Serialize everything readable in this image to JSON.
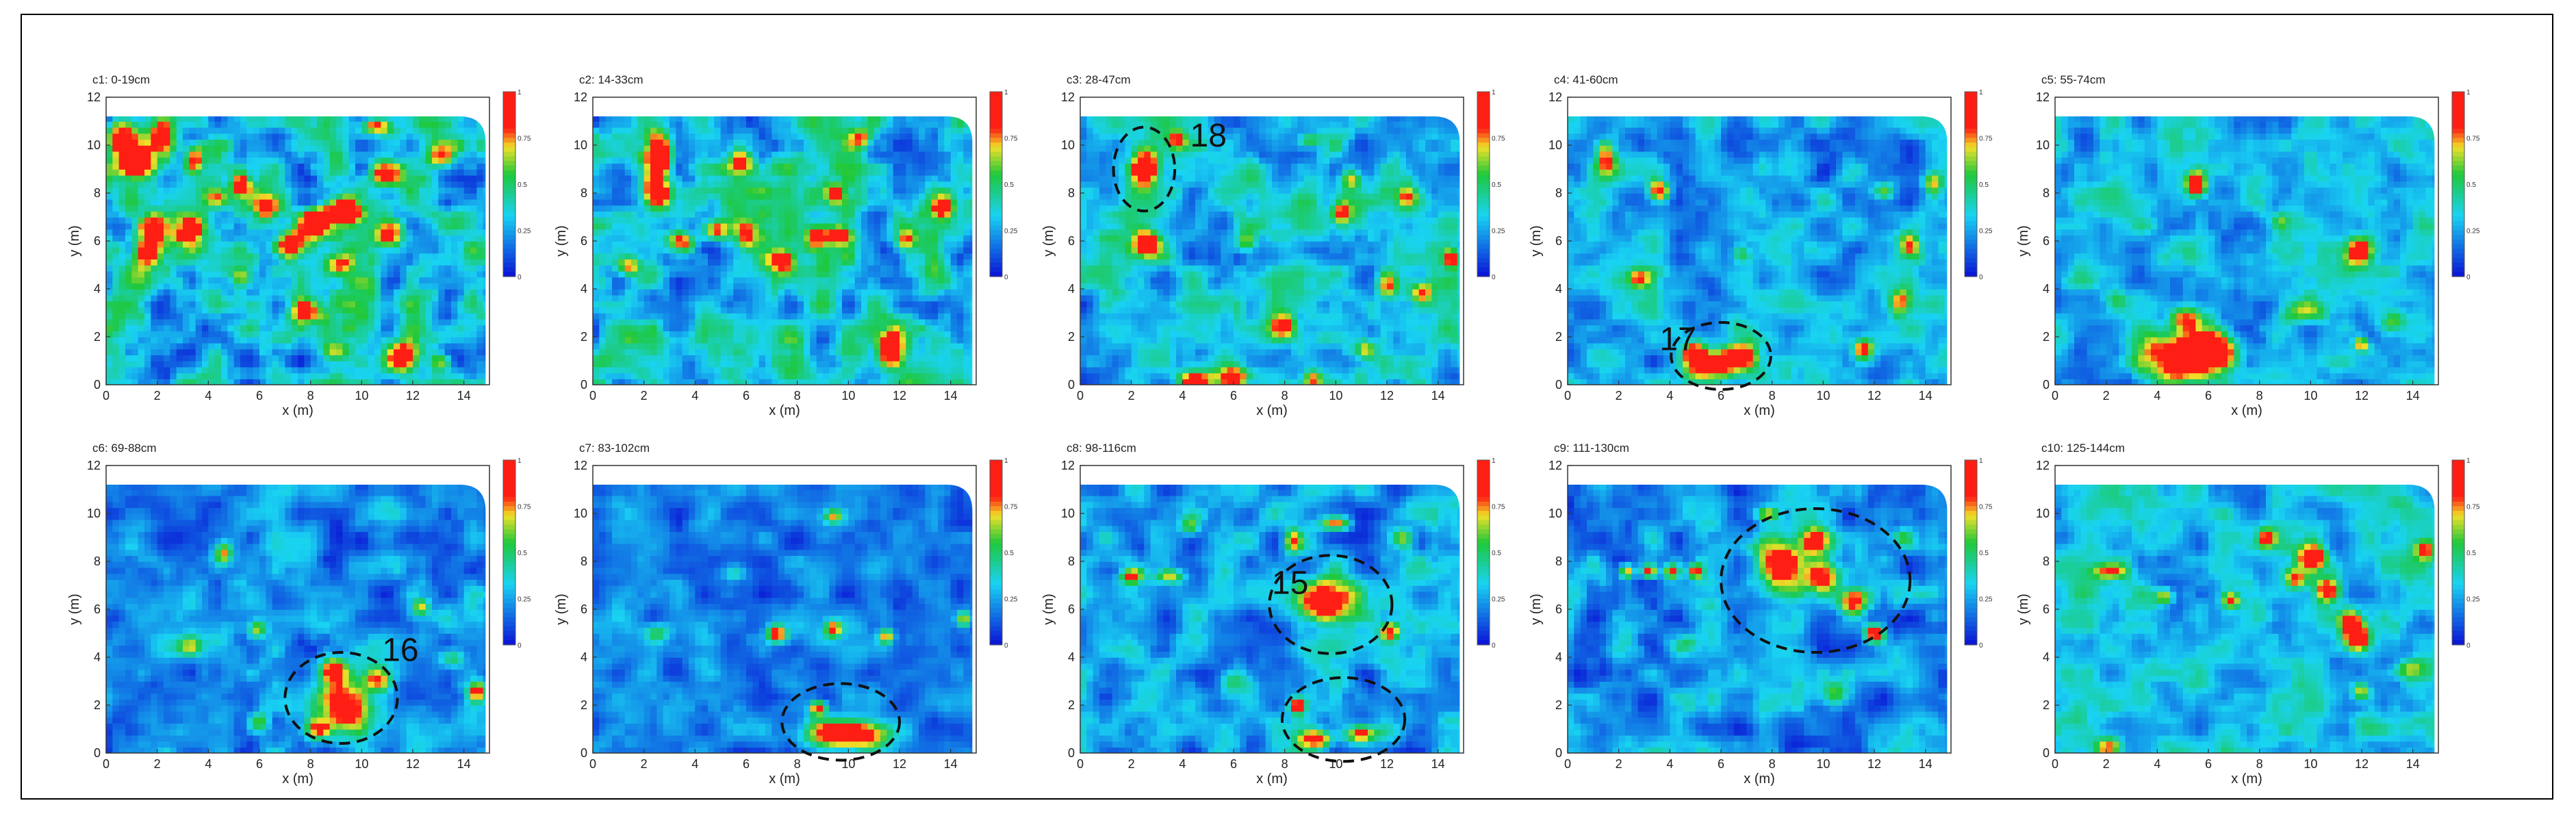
{
  "colors": {
    "low": "#0a12d6",
    "cyan": "#19d3f2",
    "green": "#1ec83c",
    "yellow": "#f0e028",
    "high": "#ff1e14"
  },
  "chart_data": {
    "type": "heatmap",
    "layout": {
      "rows": 2,
      "cols": 5
    },
    "xlabel": "x (m)",
    "ylabel": "y (m)",
    "xlim": [
      0,
      15
    ],
    "ylim": [
      0,
      12
    ],
    "xticks": [
      0,
      2,
      4,
      6,
      8,
      10,
      12,
      14
    ],
    "yticks": [
      0,
      2,
      4,
      6,
      8,
      10,
      12
    ],
    "colorbar": {
      "min": 0,
      "max": 1,
      "ticks": [
        "1",
        "0.75",
        "0.5",
        "0.25",
        "0"
      ]
    },
    "panels": [
      {
        "title": "c1: 0-19cm",
        "base": 0.33,
        "noise": 0.34,
        "blobs": [
          [
            0.5,
            10.3,
            0.6,
            0.7,
            0.8
          ],
          [
            1.3,
            9.3,
            0.7,
            0.6,
            0.8
          ],
          [
            2.2,
            10.5,
            0.4,
            0.5,
            0.6
          ],
          [
            1.8,
            6.5,
            0.6,
            0.6,
            0.7
          ],
          [
            1.5,
            5.5,
            0.5,
            0.6,
            0.6
          ],
          [
            3.3,
            6.5,
            0.6,
            0.6,
            0.8
          ],
          [
            3.5,
            9.5,
            0.4,
            0.5,
            0.6
          ],
          [
            5.3,
            8.4,
            0.4,
            0.4,
            0.6
          ],
          [
            6.3,
            7.4,
            0.5,
            0.5,
            0.7
          ],
          [
            7.2,
            5.9,
            0.6,
            0.6,
            0.8
          ],
          [
            8.2,
            6.8,
            0.6,
            0.6,
            0.8
          ],
          [
            9.3,
            7.3,
            0.6,
            0.5,
            0.9
          ],
          [
            9.1,
            5.0,
            0.5,
            0.5,
            0.6
          ],
          [
            7.8,
            3.1,
            0.5,
            0.4,
            0.5
          ],
          [
            11.0,
            6.2,
            0.5,
            0.5,
            0.6
          ],
          [
            10.8,
            8.8,
            0.5,
            0.5,
            0.5
          ],
          [
            11.7,
            1.2,
            0.6,
            0.7,
            0.8
          ],
          [
            13.0,
            1.0,
            0.4,
            0.4,
            0.5
          ],
          [
            9.0,
            1.4,
            0.5,
            0.4,
            0.5
          ],
          [
            10.6,
            10.8,
            0.6,
            0.3,
            0.6
          ],
          [
            4.3,
            7.8,
            0.4,
            0.4,
            0.5
          ],
          [
            13.0,
            9.5,
            0.5,
            0.4,
            0.4
          ],
          [
            5.3,
            4.5,
            0.4,
            0.4,
            0.45
          ]
        ],
        "annotations": []
      },
      {
        "title": "c2: 14-33cm",
        "base": 0.33,
        "noise": 0.3,
        "blobs": [
          [
            2.6,
            9.6,
            0.5,
            0.8,
            0.9
          ],
          [
            2.5,
            8.1,
            0.45,
            0.6,
            0.8
          ],
          [
            3.5,
            6.0,
            0.5,
            0.4,
            0.6
          ],
          [
            4.8,
            6.5,
            0.4,
            0.4,
            0.6
          ],
          [
            6.0,
            6.2,
            0.4,
            0.5,
            0.55
          ],
          [
            7.4,
            5.2,
            0.5,
            0.5,
            0.6
          ],
          [
            8.8,
            6.2,
            0.4,
            0.4,
            0.6
          ],
          [
            9.6,
            6.3,
            0.4,
            0.4,
            0.6
          ],
          [
            9.5,
            8.0,
            0.4,
            0.4,
            0.45
          ],
          [
            11.7,
            1.5,
            0.5,
            0.7,
            0.85
          ],
          [
            13.7,
            7.4,
            0.4,
            0.4,
            0.7
          ],
          [
            1.4,
            5.0,
            0.5,
            0.4,
            0.5
          ],
          [
            10.5,
            10.3,
            0.4,
            0.4,
            0.5
          ],
          [
            5.8,
            9.4,
            0.4,
            0.4,
            0.45
          ],
          [
            12.2,
            6.0,
            0.4,
            0.4,
            0.45
          ]
        ],
        "annotations": []
      },
      {
        "title": "c3: 28-47cm",
        "base": 0.3,
        "noise": 0.26,
        "blobs": [
          [
            2.5,
            9.0,
            0.5,
            0.8,
            0.95
          ],
          [
            2.6,
            5.9,
            0.5,
            0.5,
            0.8
          ],
          [
            3.8,
            10.2,
            0.35,
            0.35,
            0.5
          ],
          [
            4.5,
            0.2,
            0.6,
            0.4,
            0.8
          ],
          [
            6.0,
            0.3,
            0.5,
            0.4,
            0.7
          ],
          [
            7.9,
            2.5,
            0.5,
            0.5,
            0.6
          ],
          [
            9.1,
            0.2,
            0.4,
            0.4,
            0.6
          ],
          [
            10.3,
            7.2,
            0.4,
            0.6,
            0.6
          ],
          [
            10.6,
            8.6,
            0.4,
            0.4,
            0.5
          ],
          [
            12.0,
            4.2,
            0.4,
            0.5,
            0.6
          ],
          [
            13.4,
            3.9,
            0.4,
            0.4,
            0.5
          ],
          [
            14.5,
            5.3,
            0.3,
            0.4,
            0.55
          ],
          [
            12.8,
            7.8,
            0.4,
            0.4,
            0.45
          ],
          [
            9.0,
            10.2,
            0.4,
            0.3,
            0.45
          ],
          [
            6.5,
            6.0,
            0.4,
            0.4,
            0.4
          ],
          [
            11.2,
            1.5,
            0.4,
            0.4,
            0.45
          ]
        ],
        "annotations": [
          {
            "label": "18",
            "ellipse": [
              2.5,
              9.0,
              1.2,
              1.75
            ],
            "text_at": [
              4.3,
              10.4
            ]
          }
        ]
      },
      {
        "title": "c4: 41-60cm",
        "base": 0.26,
        "noise": 0.22,
        "blobs": [
          [
            5.5,
            0.9,
            1.0,
            0.6,
            0.85
          ],
          [
            6.8,
            1.2,
            0.6,
            0.5,
            0.8
          ],
          [
            4.9,
            1.4,
            0.4,
            0.4,
            0.6
          ],
          [
            3.6,
            8.1,
            0.4,
            0.4,
            0.8
          ],
          [
            1.5,
            9.5,
            0.4,
            0.7,
            0.6
          ],
          [
            2.8,
            4.5,
            0.5,
            0.4,
            0.5
          ],
          [
            11.6,
            1.5,
            0.4,
            0.4,
            0.7
          ],
          [
            13.0,
            3.5,
            0.4,
            0.5,
            0.5
          ],
          [
            13.4,
            5.8,
            0.4,
            0.5,
            0.5
          ],
          [
            14.3,
            8.5,
            0.4,
            0.4,
            0.45
          ],
          [
            6.8,
            5.5,
            0.4,
            0.4,
            0.4
          ],
          [
            12.4,
            8.1,
            0.4,
            0.4,
            0.4
          ]
        ],
        "annotations": [
          {
            "label": "17",
            "ellipse": [
              6.0,
              1.2,
              1.95,
              1.4
            ],
            "text_at": [
              3.6,
              1.9
            ]
          }
        ]
      },
      {
        "title": "c5: 55-74cm",
        "base": 0.28,
        "noise": 0.22,
        "blobs": [
          [
            5.0,
            1.2,
            1.5,
            1.0,
            0.9
          ],
          [
            5.2,
            2.8,
            0.7,
            0.5,
            0.55
          ],
          [
            6.3,
            1.6,
            0.6,
            0.6,
            0.7
          ],
          [
            5.5,
            8.4,
            0.4,
            0.5,
            0.85
          ],
          [
            11.9,
            5.6,
            0.5,
            0.6,
            0.65
          ],
          [
            12.0,
            1.7,
            0.3,
            0.3,
            0.6
          ],
          [
            2.4,
            3.5,
            0.6,
            0.5,
            0.4
          ],
          [
            9.8,
            3.1,
            0.8,
            0.5,
            0.4
          ],
          [
            13.2,
            2.6,
            0.6,
            0.5,
            0.4
          ],
          [
            8.8,
            6.8,
            0.4,
            0.4,
            0.35
          ]
        ],
        "annotations": []
      },
      {
        "title": "c6: 69-88cm",
        "base": 0.21,
        "noise": 0.2,
        "blobs": [
          [
            9.3,
            2.0,
            1.1,
            1.2,
            0.9
          ],
          [
            8.9,
            3.5,
            0.5,
            0.5,
            0.7
          ],
          [
            10.6,
            3.1,
            0.5,
            0.5,
            0.6
          ],
          [
            8.3,
            1.0,
            0.5,
            0.4,
            0.6
          ],
          [
            14.5,
            2.6,
            0.35,
            0.4,
            0.65
          ],
          [
            4.6,
            8.3,
            0.35,
            0.45,
            0.55
          ],
          [
            5.9,
            5.2,
            0.35,
            0.35,
            0.5
          ],
          [
            12.3,
            6.1,
            0.35,
            0.35,
            0.45
          ],
          [
            6.0,
            1.3,
            0.4,
            0.4,
            0.4
          ],
          [
            13.5,
            4.0,
            0.5,
            0.4,
            0.35
          ],
          [
            3.3,
            4.5,
            0.5,
            0.4,
            0.35
          ]
        ],
        "annotations": [
          {
            "label": "16",
            "ellipse": [
              9.2,
              2.3,
              2.2,
              1.9
            ],
            "text_at": [
              10.8,
              4.3
            ]
          }
        ]
      },
      {
        "title": "c7: 83-102cm",
        "base": 0.18,
        "noise": 0.17,
        "blobs": [
          [
            10.0,
            0.8,
            1.6,
            0.6,
            0.95
          ],
          [
            8.8,
            1.9,
            0.3,
            0.3,
            0.75
          ],
          [
            7.2,
            5.0,
            0.4,
            0.35,
            0.7
          ],
          [
            9.4,
            5.2,
            0.35,
            0.35,
            0.65
          ],
          [
            11.5,
            4.9,
            0.3,
            0.3,
            0.55
          ],
          [
            14.5,
            5.6,
            0.3,
            0.35,
            0.55
          ],
          [
            9.4,
            9.9,
            0.4,
            0.3,
            0.5
          ],
          [
            2.5,
            5.0,
            0.5,
            0.4,
            0.35
          ],
          [
            5.5,
            7.5,
            0.5,
            0.4,
            0.3
          ]
        ],
        "annotations": [
          {
            "label": "",
            "ellipse": [
              9.7,
              1.3,
              2.3,
              1.6
            ],
            "text_at": [
              0,
              0
            ]
          }
        ]
      },
      {
        "title": "c8: 98-116cm",
        "base": 0.24,
        "noise": 0.22,
        "blobs": [
          [
            9.6,
            6.3,
            1.2,
            0.9,
            0.9
          ],
          [
            8.3,
            8.9,
            0.35,
            0.5,
            0.6
          ],
          [
            10.0,
            9.6,
            0.5,
            0.3,
            0.7
          ],
          [
            2.0,
            7.4,
            0.4,
            0.3,
            0.7
          ],
          [
            3.5,
            7.4,
            0.6,
            0.3,
            0.5
          ],
          [
            12.1,
            5.1,
            0.35,
            0.35,
            0.7
          ],
          [
            8.5,
            2.0,
            0.3,
            0.3,
            0.75
          ],
          [
            9.2,
            0.6,
            0.6,
            0.35,
            0.7
          ],
          [
            11.0,
            0.8,
            0.7,
            0.4,
            0.7
          ],
          [
            4.3,
            9.5,
            0.4,
            0.4,
            0.4
          ],
          [
            12.6,
            9.0,
            0.4,
            0.4,
            0.4
          ],
          [
            6.0,
            3.0,
            0.6,
            0.5,
            0.35
          ]
        ],
        "annotations": [
          {
            "label": "15",
            "ellipse": [
              9.8,
              6.2,
              2.4,
              2.05
            ],
            "text_at": [
              7.5,
              7.1
            ]
          },
          {
            "label": "",
            "ellipse": [
              10.3,
              1.4,
              2.4,
              1.75
            ],
            "text_at": [
              0,
              0
            ]
          }
        ]
      },
      {
        "title": "c9: 111-130cm",
        "base": 0.22,
        "noise": 0.22,
        "blobs": [
          [
            8.4,
            7.9,
            1.0,
            1.0,
            0.9
          ],
          [
            9.7,
            8.9,
            0.5,
            0.5,
            0.7
          ],
          [
            10.0,
            7.4,
            0.6,
            0.6,
            0.7
          ],
          [
            11.2,
            6.3,
            0.5,
            0.5,
            0.7
          ],
          [
            12.0,
            5.0,
            0.4,
            0.4,
            0.8
          ],
          [
            2.3,
            7.6,
            0.3,
            0.3,
            0.7
          ],
          [
            3.2,
            7.6,
            0.3,
            0.3,
            0.7
          ],
          [
            4.1,
            7.6,
            0.3,
            0.3,
            0.7
          ],
          [
            5.0,
            7.6,
            0.3,
            0.3,
            0.65
          ],
          [
            7.8,
            10.0,
            0.4,
            0.3,
            0.45
          ],
          [
            13.2,
            9.0,
            0.4,
            0.4,
            0.4
          ],
          [
            4.5,
            4.5,
            0.6,
            0.5,
            0.35
          ],
          [
            10.5,
            2.5,
            0.7,
            0.5,
            0.35
          ]
        ],
        "annotations": [
          {
            "label": "",
            "ellipse": [
              9.7,
              7.2,
              3.7,
              3.0
            ],
            "text_at": [
              0,
              0
            ]
          }
        ]
      },
      {
        "title": "c10: 125-144cm",
        "base": 0.3,
        "noise": 0.22,
        "blobs": [
          [
            10.1,
            8.2,
            0.5,
            0.5,
            0.8
          ],
          [
            10.7,
            6.8,
            0.5,
            0.5,
            0.75
          ],
          [
            11.6,
            5.5,
            0.4,
            0.4,
            0.7
          ],
          [
            11.8,
            4.8,
            0.5,
            0.5,
            0.9
          ],
          [
            8.3,
            9.0,
            0.35,
            0.35,
            0.7
          ],
          [
            9.4,
            7.3,
            0.4,
            0.4,
            0.55
          ],
          [
            6.9,
            6.4,
            0.35,
            0.35,
            0.6
          ],
          [
            4.3,
            6.5,
            0.35,
            0.35,
            0.5
          ],
          [
            2.2,
            7.6,
            0.8,
            0.3,
            0.45
          ],
          [
            2.1,
            0.3,
            0.5,
            0.4,
            0.5
          ],
          [
            12.0,
            2.6,
            0.35,
            0.35,
            0.45
          ],
          [
            14.5,
            8.5,
            0.4,
            0.4,
            0.45
          ],
          [
            13.8,
            3.5,
            0.5,
            0.4,
            0.4
          ]
        ],
        "annotations": []
      }
    ]
  }
}
